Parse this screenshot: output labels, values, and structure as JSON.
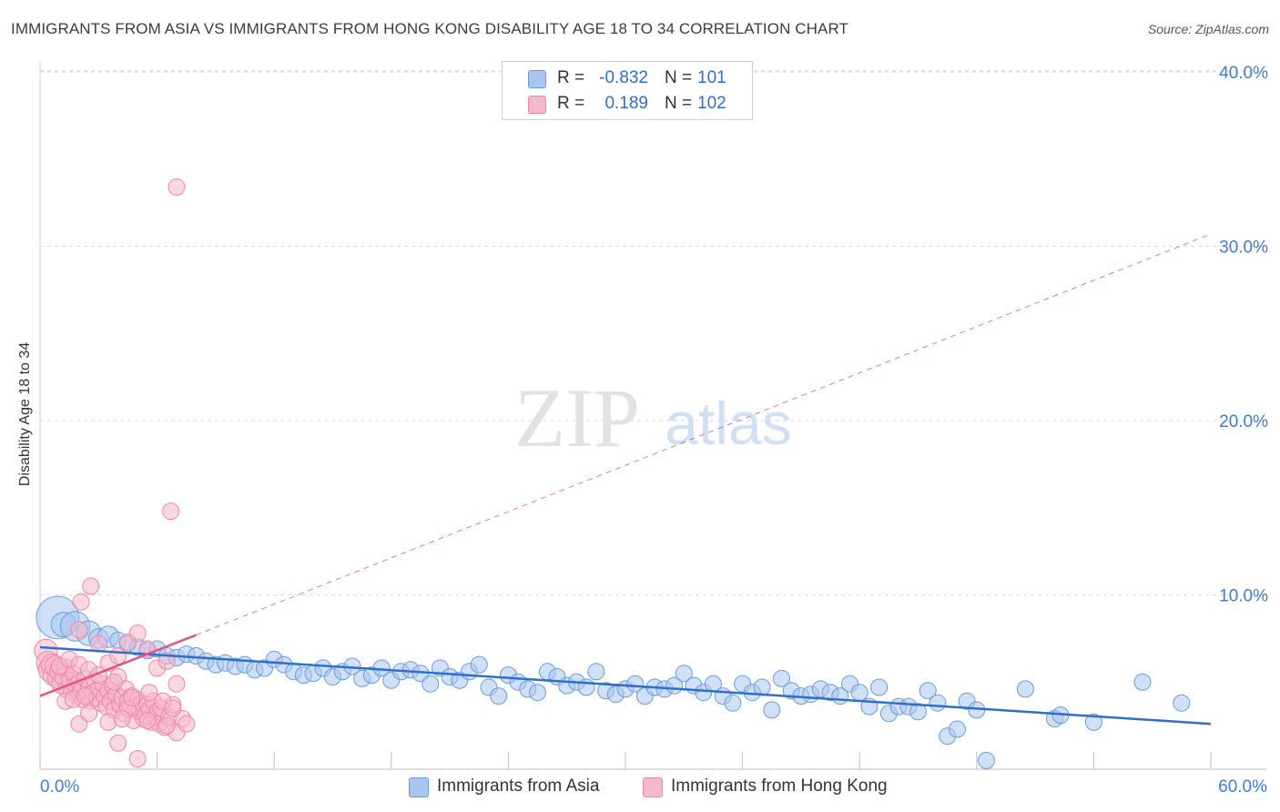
{
  "title": "IMMIGRANTS FROM ASIA VS IMMIGRANTS FROM HONG KONG DISABILITY AGE 18 TO 34 CORRELATION CHART",
  "source": "Source: ZipAtlas.com",
  "watermark": {
    "zip": "ZIP",
    "atlas": "atlas"
  },
  "colors": {
    "asia_fill": "#a9c6ee",
    "asia_stroke": "#6a9bdc",
    "asia_line": "#2f6fc9",
    "hk_fill": "#f6b8cb",
    "hk_stroke": "#ee86a6",
    "hk_line": "#e2548a",
    "tick_label": "#3d7dd6",
    "grid": "#d9d9d9"
  },
  "stats": [
    {
      "r_label": "R =",
      "r_value": "-0.832",
      "n_label": "N =",
      "n_value": "101",
      "series": "asia"
    },
    {
      "r_label": "R =",
      "r_value": "0.189",
      "n_label": "N =",
      "n_value": "102",
      "series": "hk"
    }
  ],
  "legend": [
    {
      "label": "Immigrants from Asia",
      "series": "asia"
    },
    {
      "label": "Immigrants from Hong Kong",
      "series": "hk"
    }
  ],
  "chart_data": {
    "type": "scatter",
    "title": "IMMIGRANTS FROM ASIA VS IMMIGRANTS FROM HONG KONG DISABILITY AGE 18 TO 34 CORRELATION CHART",
    "xlabel": "",
    "ylabel": "Disability Age 18 to 34",
    "xlim": [
      0,
      60
    ],
    "ylim": [
      0,
      40
    ],
    "x_tick_labels": [
      {
        "value": 0,
        "label": "0.0%"
      },
      {
        "value": 60,
        "label": "60.0%"
      }
    ],
    "y_tick_labels": [
      {
        "value": 10,
        "label": "10.0%"
      },
      {
        "value": 20,
        "label": "20.0%"
      },
      {
        "value": 30,
        "label": "30.0%"
      },
      {
        "value": 40,
        "label": "40.0%"
      }
    ],
    "series": [
      {
        "name": "Immigrants from Asia",
        "key": "asia",
        "trend": {
          "x1": 0,
          "y1": 7.0,
          "x2": 60,
          "y2": 2.6
        },
        "points": [
          [
            0.9,
            8.7,
            2.6
          ],
          [
            1.2,
            8.3,
            1.5
          ],
          [
            1.8,
            8.2,
            1.8
          ],
          [
            2.5,
            7.8,
            1.5
          ],
          [
            3.0,
            7.5,
            1.2
          ],
          [
            3.5,
            7.6,
            1.3
          ],
          [
            4.0,
            7.4,
            1.0
          ],
          [
            4.5,
            7.2,
            1.0
          ],
          [
            5.0,
            7.0,
            1.0
          ],
          [
            5.5,
            6.8,
            1.0
          ],
          [
            6.0,
            6.9,
            1.0
          ],
          [
            6.5,
            6.5,
            1.0
          ],
          [
            7.0,
            6.4,
            1.0
          ],
          [
            7.5,
            6.6,
            1.0
          ],
          [
            8.0,
            6.5,
            1.0
          ],
          [
            8.5,
            6.2,
            1.0
          ],
          [
            9.0,
            6.0,
            1.0
          ],
          [
            9.5,
            6.1,
            1.0
          ],
          [
            10.0,
            5.9,
            1.0
          ],
          [
            10.5,
            6.0,
            1.0
          ],
          [
            11.0,
            5.7,
            1.0
          ],
          [
            11.5,
            5.8,
            1.0
          ],
          [
            12.0,
            6.3,
            1.0
          ],
          [
            12.5,
            6.0,
            1.0
          ],
          [
            13.0,
            5.6,
            1.0
          ],
          [
            13.5,
            5.4,
            1.0
          ],
          [
            14.0,
            5.5,
            1.0
          ],
          [
            14.5,
            5.8,
            1.0
          ],
          [
            15.0,
            5.3,
            1.0
          ],
          [
            15.5,
            5.6,
            1.0
          ],
          [
            16.0,
            5.9,
            1.0
          ],
          [
            16.5,
            5.2,
            1.0
          ],
          [
            17.0,
            5.4,
            1.0
          ],
          [
            17.5,
            5.8,
            1.0
          ],
          [
            18.0,
            5.1,
            1.0
          ],
          [
            18.5,
            5.6,
            1.0
          ],
          [
            19.0,
            5.7,
            1.0
          ],
          [
            19.5,
            5.5,
            1.0
          ],
          [
            20.0,
            4.9,
            1.0
          ],
          [
            20.5,
            5.8,
            1.0
          ],
          [
            21.0,
            5.3,
            1.0
          ],
          [
            21.5,
            5.1,
            1.0
          ],
          [
            22.0,
            5.6,
            1.0
          ],
          [
            22.5,
            6.0,
            1.0
          ],
          [
            23.0,
            4.7,
            1.0
          ],
          [
            23.5,
            4.2,
            1.0
          ],
          [
            24.0,
            5.4,
            1.0
          ],
          [
            24.5,
            5.0,
            1.0
          ],
          [
            25.0,
            4.6,
            1.0
          ],
          [
            25.5,
            4.4,
            1.0
          ],
          [
            26.0,
            5.6,
            1.0
          ],
          [
            26.5,
            5.3,
            1.0
          ],
          [
            27.0,
            4.8,
            1.0
          ],
          [
            27.5,
            5.0,
            1.0
          ],
          [
            28.0,
            4.7,
            1.0
          ],
          [
            28.5,
            5.6,
            1.0
          ],
          [
            29.0,
            4.5,
            1.0
          ],
          [
            29.5,
            4.3,
            1.0
          ],
          [
            30.0,
            4.6,
            1.0
          ],
          [
            30.5,
            4.9,
            1.0
          ],
          [
            31.0,
            4.2,
            1.0
          ],
          [
            31.5,
            4.7,
            1.0
          ],
          [
            32.0,
            4.6,
            1.0
          ],
          [
            32.5,
            4.8,
            1.0
          ],
          [
            33.0,
            5.5,
            1.0
          ],
          [
            33.5,
            4.8,
            1.0
          ],
          [
            34.0,
            4.4,
            1.0
          ],
          [
            34.5,
            4.9,
            1.0
          ],
          [
            35.0,
            4.2,
            1.0
          ],
          [
            35.5,
            3.8,
            1.0
          ],
          [
            36.0,
            4.9,
            1.0
          ],
          [
            36.5,
            4.4,
            1.0
          ],
          [
            37.0,
            4.7,
            1.0
          ],
          [
            37.5,
            3.4,
            1.0
          ],
          [
            38.0,
            5.2,
            1.0
          ],
          [
            38.5,
            4.5,
            1.0
          ],
          [
            39.0,
            4.2,
            1.0
          ],
          [
            39.5,
            4.3,
            1.0
          ],
          [
            40.0,
            4.6,
            1.0
          ],
          [
            40.5,
            4.4,
            1.0
          ],
          [
            41.0,
            4.2,
            1.0
          ],
          [
            41.5,
            4.9,
            1.0
          ],
          [
            42.0,
            4.4,
            1.0
          ],
          [
            42.5,
            3.6,
            1.0
          ],
          [
            43.0,
            4.7,
            1.0
          ],
          [
            43.5,
            3.2,
            1.0
          ],
          [
            44.0,
            3.6,
            1.0
          ],
          [
            44.5,
            3.6,
            1.0
          ],
          [
            45.0,
            3.3,
            1.0
          ],
          [
            45.5,
            4.5,
            1.0
          ],
          [
            46.0,
            3.8,
            1.0
          ],
          [
            46.5,
            1.9,
            1.0
          ],
          [
            47.0,
            2.3,
            1.0
          ],
          [
            47.5,
            3.9,
            1.0
          ],
          [
            48.0,
            3.4,
            1.0
          ],
          [
            48.5,
            0.5,
            1.0
          ],
          [
            50.5,
            4.6,
            1.0
          ],
          [
            52.0,
            2.9,
            1.0
          ],
          [
            52.3,
            3.1,
            1.0
          ],
          [
            54.0,
            2.7,
            1.0
          ],
          [
            56.5,
            5.0,
            1.0
          ],
          [
            58.5,
            3.8,
            1.0
          ]
        ]
      },
      {
        "name": "Immigrants from Hong Kong",
        "key": "hk",
        "trend": {
          "x1": 0,
          "y1": 4.2,
          "x2": 8.0,
          "y2": 7.7,
          "ext_x2": 60,
          "ext_y2": 30.7
        },
        "points": [
          [
            0.3,
            6.8,
            1.4
          ],
          [
            0.4,
            6.1,
            1.4
          ],
          [
            0.5,
            5.7,
            1.4
          ],
          [
            0.6,
            6.0,
            1.3
          ],
          [
            0.7,
            5.4,
            1.3
          ],
          [
            0.8,
            5.9,
            1.3
          ],
          [
            0.9,
            5.2,
            1.2
          ],
          [
            1.0,
            5.6,
            1.2
          ],
          [
            1.1,
            4.9,
            1.2
          ],
          [
            1.2,
            5.3,
            1.1
          ],
          [
            1.3,
            5.8,
            1.1
          ],
          [
            1.4,
            4.6,
            1.1
          ],
          [
            1.5,
            5.1,
            1.0
          ],
          [
            1.6,
            4.4,
            1.0
          ],
          [
            1.7,
            5.5,
            1.0
          ],
          [
            1.8,
            4.8,
            1.0
          ],
          [
            1.9,
            4.2,
            1.0
          ],
          [
            2.0,
            5.0,
            1.0
          ],
          [
            2.1,
            4.5,
            1.0
          ],
          [
            2.2,
            4.0,
            1.0
          ],
          [
            2.3,
            5.2,
            1.0
          ],
          [
            2.4,
            4.3,
            1.0
          ],
          [
            2.5,
            4.7,
            1.0
          ],
          [
            2.6,
            3.9,
            1.0
          ],
          [
            2.7,
            4.4,
            1.0
          ],
          [
            2.8,
            5.1,
            1.0
          ],
          [
            2.9,
            4.1,
            1.0
          ],
          [
            3.0,
            4.6,
            1.0
          ],
          [
            3.1,
            3.8,
            1.0
          ],
          [
            3.2,
            4.9,
            1.0
          ],
          [
            3.3,
            4.2,
            1.0
          ],
          [
            3.4,
            3.6,
            1.0
          ],
          [
            3.5,
            4.5,
            1.0
          ],
          [
            3.6,
            3.9,
            1.0
          ],
          [
            3.7,
            4.8,
            1.0
          ],
          [
            3.8,
            3.4,
            1.0
          ],
          [
            3.9,
            4.3,
            1.0
          ],
          [
            4.0,
            5.3,
            1.0
          ],
          [
            4.1,
            3.7,
            1.0
          ],
          [
            4.2,
            4.1,
            1.0
          ],
          [
            4.3,
            3.2,
            1.0
          ],
          [
            4.4,
            4.6,
            1.0
          ],
          [
            4.5,
            3.9,
            1.0
          ],
          [
            4.6,
            3.5,
            1.0
          ],
          [
            4.7,
            4.2,
            1.0
          ],
          [
            4.8,
            2.8,
            1.0
          ],
          [
            4.9,
            3.6,
            1.0
          ],
          [
            5.0,
            4.0,
            1.0
          ],
          [
            5.1,
            3.3,
            1.0
          ],
          [
            5.2,
            3.8,
            1.0
          ],
          [
            5.3,
            2.9,
            1.0
          ],
          [
            5.4,
            3.1,
            1.0
          ],
          [
            5.5,
            3.7,
            1.0
          ],
          [
            5.6,
            3.4,
            1.0
          ],
          [
            5.7,
            2.7,
            1.0
          ],
          [
            5.8,
            3.9,
            1.0
          ],
          [
            5.9,
            3.0,
            1.0
          ],
          [
            6.0,
            3.3,
            1.0
          ],
          [
            6.1,
            2.6,
            1.0
          ],
          [
            6.2,
            3.5,
            1.0
          ],
          [
            6.4,
            2.4,
            1.0
          ],
          [
            6.6,
            3.0,
            1.0
          ],
          [
            6.8,
            3.7,
            1.0
          ],
          [
            7.0,
            2.1,
            1.0
          ],
          [
            7.3,
            2.9,
            1.0
          ],
          [
            1.0,
            5.9,
            1.0
          ],
          [
            1.5,
            6.3,
            1.0
          ],
          [
            2.0,
            6.0,
            1.0
          ],
          [
            2.5,
            5.7,
            1.0
          ],
          [
            3.0,
            5.4,
            1.0
          ],
          [
            3.5,
            6.1,
            1.0
          ],
          [
            4.0,
            6.5,
            1.0
          ],
          [
            4.5,
            7.3,
            1.0
          ],
          [
            5.0,
            7.8,
            1.0
          ],
          [
            5.5,
            6.9,
            1.0
          ],
          [
            6.0,
            5.8,
            1.0
          ],
          [
            6.5,
            6.2,
            1.0
          ],
          [
            7.0,
            4.9,
            1.0
          ],
          [
            2.0,
            2.6,
            1.0
          ],
          [
            2.5,
            3.2,
            1.0
          ],
          [
            3.5,
            2.7,
            1.0
          ],
          [
            4.0,
            1.5,
            1.0
          ],
          [
            4.5,
            3.5,
            1.0
          ],
          [
            5.0,
            0.6,
            1.0
          ],
          [
            5.5,
            2.8,
            1.0
          ],
          [
            6.5,
            2.5,
            1.0
          ],
          [
            7.5,
            2.6,
            1.0
          ],
          [
            3.0,
            7.2,
            1.0
          ],
          [
            2.0,
            8.0,
            1.0
          ],
          [
            2.1,
            9.6,
            1.0
          ],
          [
            2.6,
            10.5,
            1.0
          ],
          [
            4.7,
            4.1,
            1.0
          ],
          [
            3.8,
            5.0,
            1.0
          ],
          [
            1.3,
            3.9,
            1.0
          ],
          [
            1.7,
            4.0,
            1.0
          ],
          [
            2.3,
            4.2,
            1.0
          ],
          [
            4.2,
            2.9,
            1.0
          ],
          [
            5.6,
            4.4,
            1.0
          ],
          [
            6.3,
            3.9,
            1.0
          ],
          [
            6.7,
            14.8,
            1.0
          ],
          [
            7.0,
            33.4,
            1.0
          ],
          [
            6.8,
            3.5,
            1.0
          ]
        ]
      }
    ],
    "grid": true,
    "legend_position": "bottom-center"
  }
}
